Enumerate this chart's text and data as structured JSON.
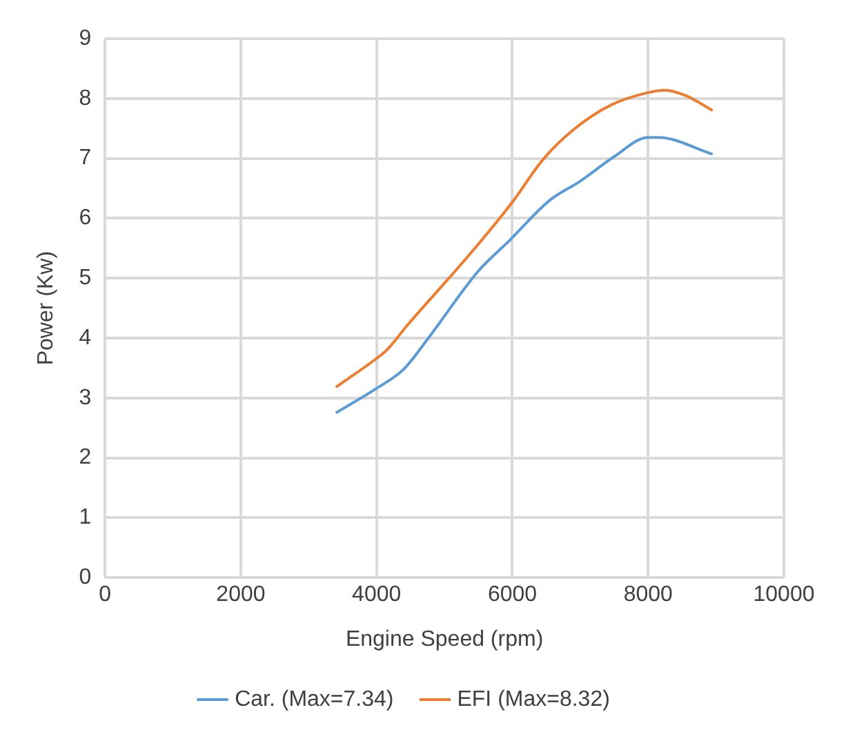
{
  "chart_data": {
    "type": "line",
    "xlabel": "Engine Speed (rpm)",
    "ylabel": "Power (Kw)",
    "xlim": [
      0,
      10000
    ],
    "xticks": [
      0,
      2000,
      4000,
      6000,
      8000,
      10000
    ],
    "ylim": [
      0,
      9
    ],
    "yticks": [
      0,
      1,
      2,
      3,
      4,
      5,
      6,
      7,
      8,
      9
    ],
    "grid": true,
    "legend": "bottom",
    "marker": "none",
    "line_style": "solid",
    "series": [
      {
        "name": "Car. (Max=7.34)",
        "color": "#5b9bd5",
        "x": [
          3400,
          4000,
          4400,
          4750,
          5500,
          5950,
          6550,
          7000,
          7500,
          8000,
          8150,
          8950
        ],
        "values": [
          2.75,
          3.16,
          3.48,
          3.98,
          5.12,
          5.62,
          6.3,
          6.62,
          7.03,
          7.35,
          7.35,
          7.07
        ]
      },
      {
        "name": "EFI (Max=8.32)",
        "color": "#ed7d31",
        "x": [
          3400,
          4000,
          4150,
          4450,
          5050,
          5500,
          6000,
          6450,
          6900,
          7450,
          8000,
          8250,
          8550,
          8950
        ],
        "values": [
          3.18,
          3.66,
          3.8,
          4.21,
          4.98,
          5.57,
          6.27,
          6.98,
          7.48,
          7.89,
          8.1,
          8.14,
          8.05,
          7.8
        ]
      }
    ]
  }
}
